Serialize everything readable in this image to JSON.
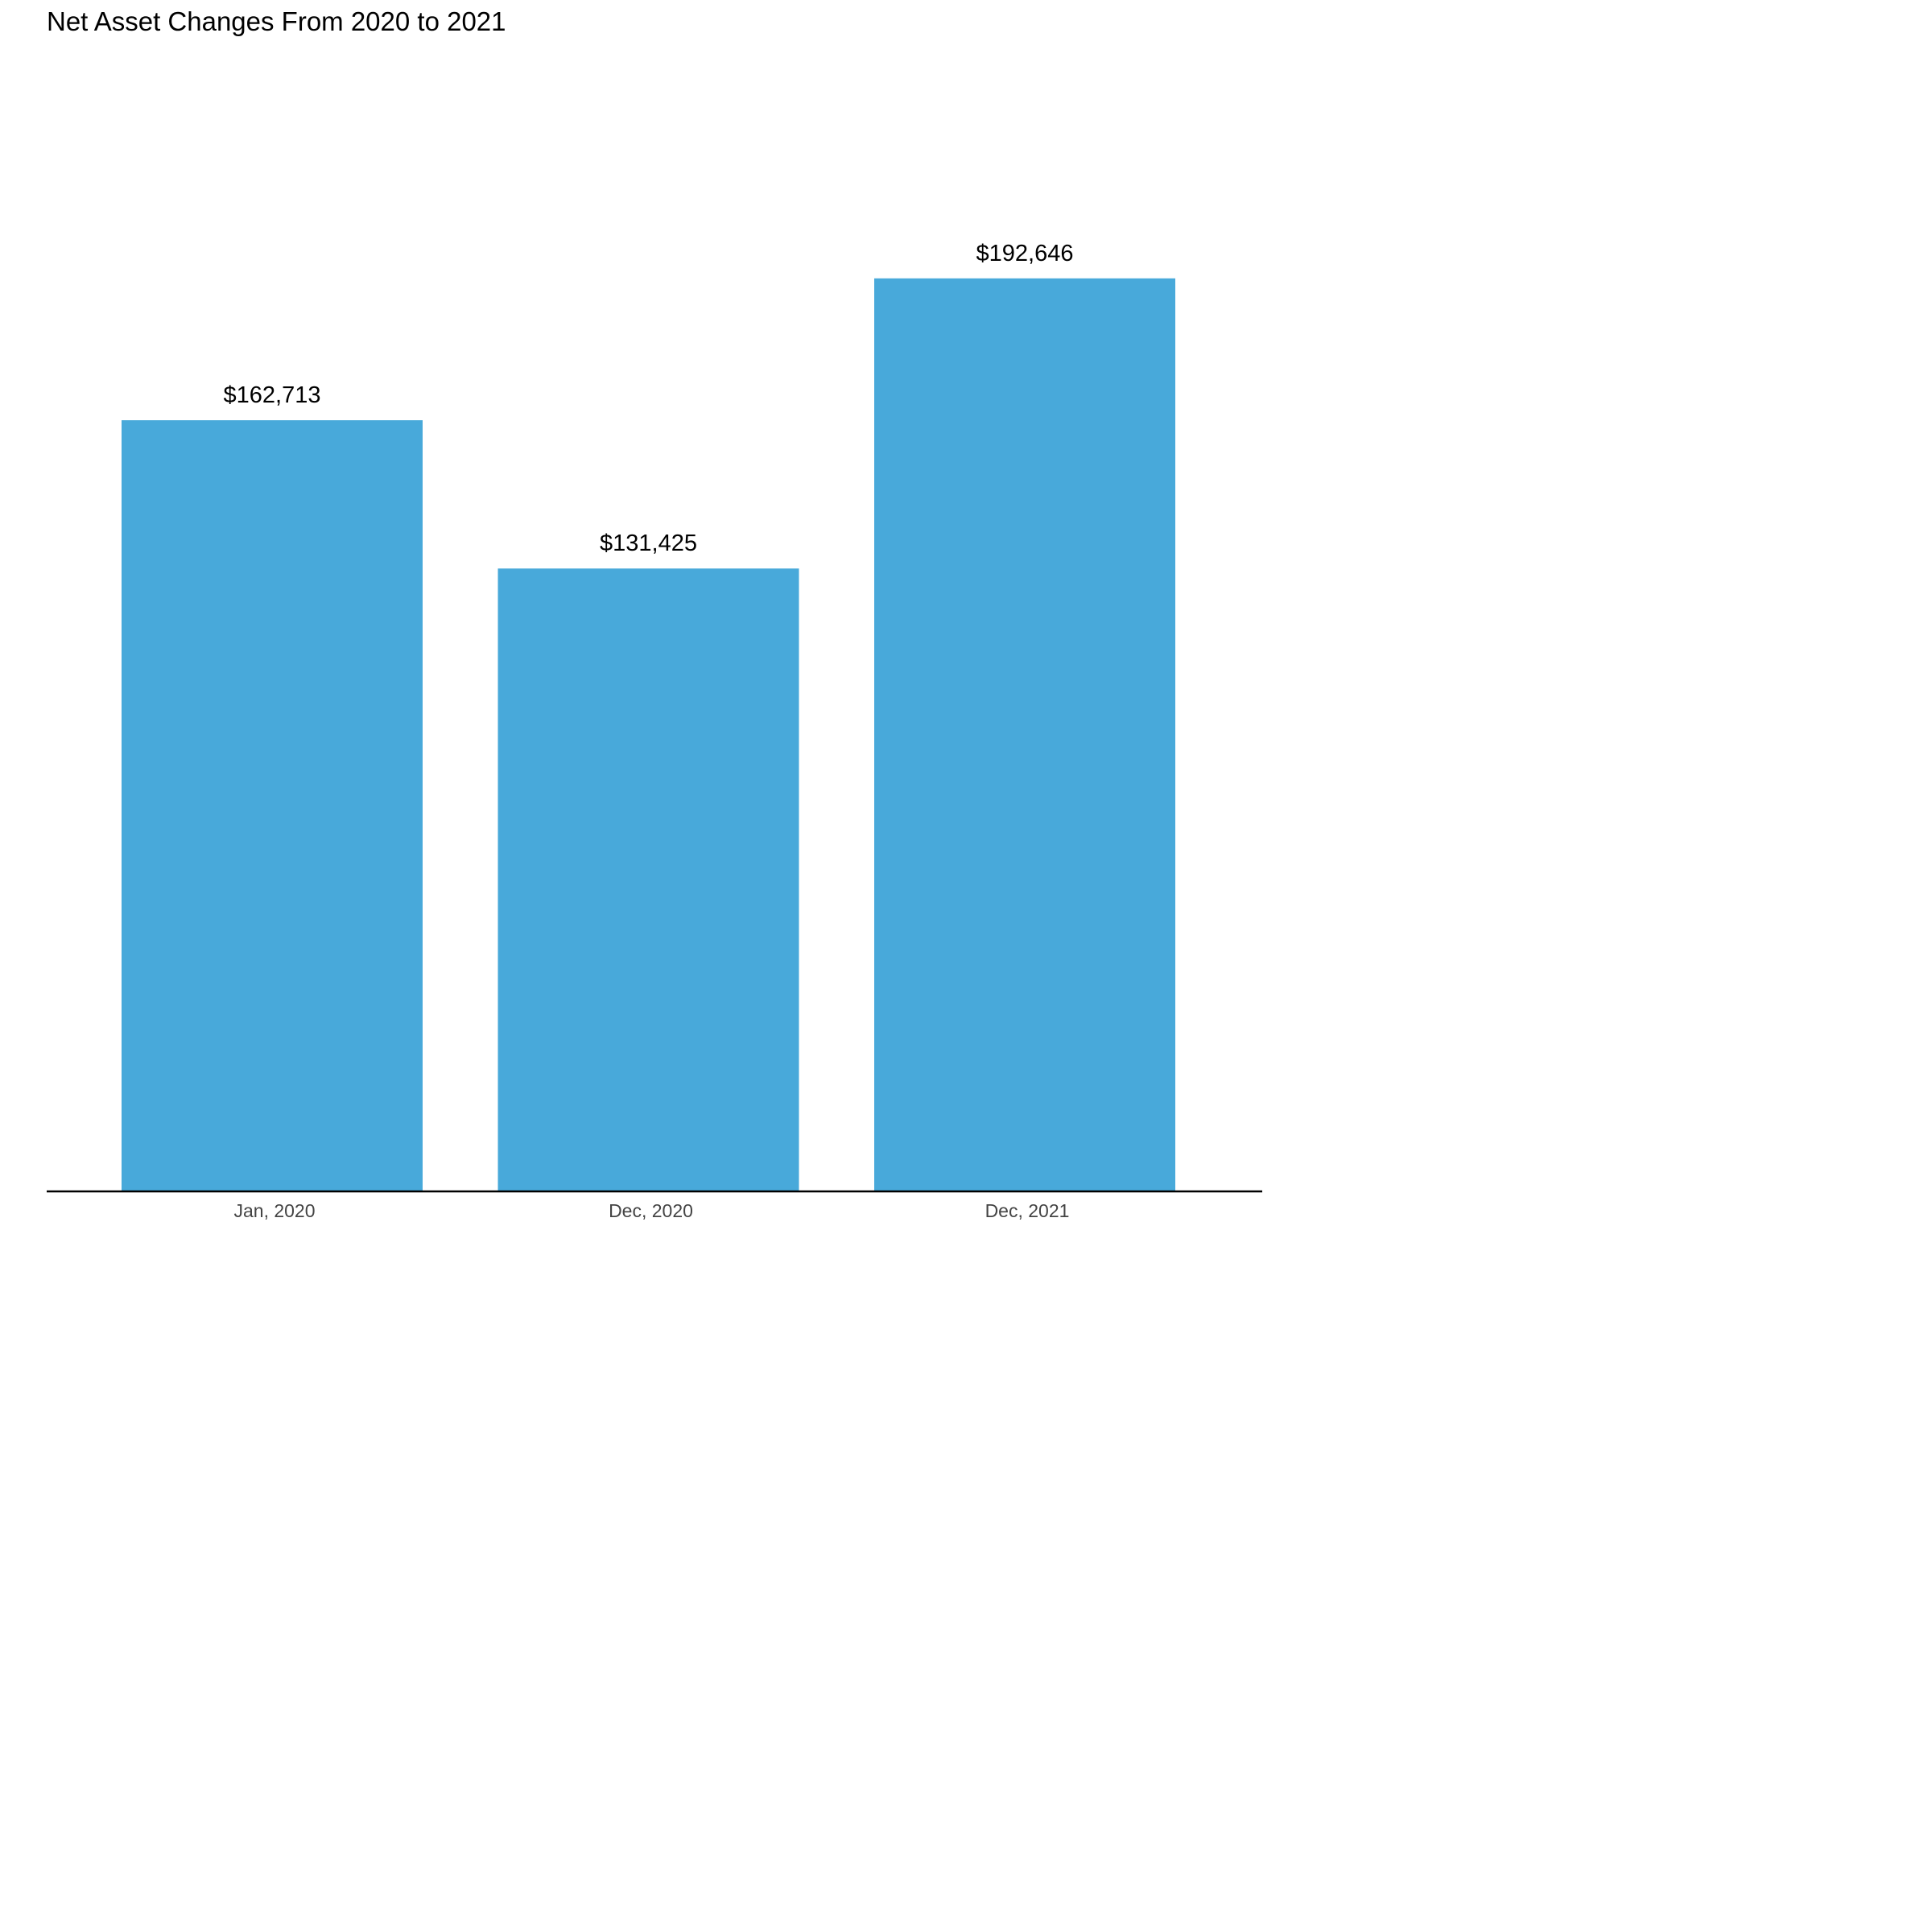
{
  "chart_data": {
    "type": "bar",
    "title": "Net Asset Changes From 2020 to 2021",
    "xlabel": "",
    "ylabel": "",
    "categories": [
      "Jan, 2020",
      "Dec, 2020",
      "Dec, 2021"
    ],
    "values": [
      162713,
      131425,
      192646
    ],
    "value_labels": [
      "$162,713",
      "$131,425",
      "$192,646"
    ],
    "ylim": [
      0,
      240000
    ],
    "grid": false,
    "bar_color": "#48A9DA",
    "axis_color": "#000000"
  }
}
